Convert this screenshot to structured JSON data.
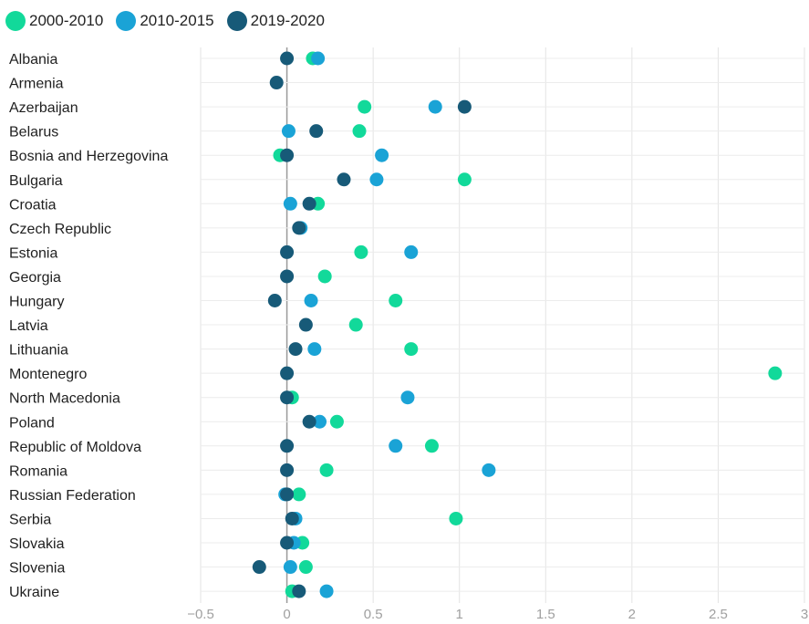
{
  "chart_data": {
    "type": "scatter",
    "title": "",
    "xlabel": "",
    "ylabel": "",
    "xlim": [
      -0.5,
      3
    ],
    "x_ticks": [
      "−0.5",
      "0",
      "0.5",
      "1",
      "1.5",
      "2",
      "2.5",
      "3"
    ],
    "grid": true,
    "legend_placement": "top-left",
    "categories": [
      "Albania",
      "Armenia",
      "Azerbaijan",
      "Belarus",
      "Bosnia and Herzegovina",
      "Bulgaria",
      "Croatia",
      "Czech Republic",
      "Estonia",
      "Georgia",
      "Hungary",
      "Latvia",
      "Lithuania",
      "Montenegro",
      "North Macedonia",
      "Poland",
      "Republic of Moldova",
      "Romania",
      "Russian Federation",
      "Serbia",
      "Slovakia",
      "Slovenia",
      "Ukraine"
    ],
    "series": [
      {
        "name": "2000-2010",
        "color": "#12d99a",
        "values": [
          0.15,
          null,
          0.45,
          0.42,
          -0.04,
          1.03,
          0.18,
          null,
          0.43,
          0.22,
          0.63,
          0.4,
          0.72,
          2.83,
          0.03,
          0.29,
          0.84,
          0.23,
          0.07,
          0.98,
          0.09,
          0.11,
          0.03
        ]
      },
      {
        "name": "2010-2015",
        "color": "#1aa3d6",
        "values": [
          0.18,
          null,
          0.86,
          0.01,
          0.55,
          0.52,
          0.02,
          0.08,
          0.72,
          null,
          0.14,
          null,
          0.16,
          null,
          0.7,
          0.19,
          0.63,
          1.17,
          -0.01,
          0.05,
          0.04,
          0.02,
          0.23
        ]
      },
      {
        "name": "2019-2020",
        "color": "#175a78",
        "values": [
          0.0,
          -0.06,
          1.03,
          0.17,
          0.0,
          0.33,
          0.13,
          0.07,
          0.0,
          0.0,
          -0.07,
          0.11,
          0.05,
          0.0,
          0.0,
          0.13,
          0.0,
          0.0,
          0.0,
          0.03,
          0.0,
          -0.16,
          0.07
        ]
      }
    ]
  }
}
